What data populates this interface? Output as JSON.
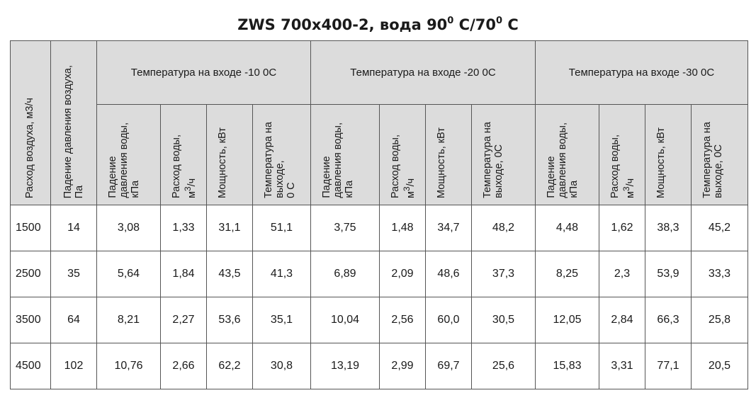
{
  "title": {
    "prefix": "ZWS 700x400-2, вода 90",
    "sup1": "0",
    "middle": " C/70",
    "sup2": "0",
    "suffix": " C"
  },
  "header": {
    "col_air_flow": "Расход воздуха, м3/ч",
    "col_air_pressure": "Падение давления воздуха,\nПа",
    "groups": [
      {
        "label": "Температура на входе -10 0С",
        "cols": [
          {
            "main": "Падение\nдавления воды,\nкПа"
          },
          {
            "main": "Расход воды,\nм",
            "sup": "3",
            "tail": "/ч"
          },
          {
            "main": "Мощность, кВт"
          },
          {
            "main": "Температура на\nвыходе,\n0 С"
          }
        ]
      },
      {
        "label": "Температура на входе -20 0С",
        "cols": [
          {
            "main": "Падение\nдавления воды,\nкПа"
          },
          {
            "main": "Расход воды,\nм",
            "sup": "3",
            "tail": "/ч"
          },
          {
            "main": "Мощность, кВт"
          },
          {
            "main": "Температура на\nвыходе, 0С"
          }
        ]
      },
      {
        "label": "Температура на входе -30 0С",
        "cols": [
          {
            "main": "Падение\nдавления воды,\nкПа"
          },
          {
            "main": "Расход воды,\nм",
            "sup": "3",
            "tail": "/ч"
          },
          {
            "main": "Мощность, кВт"
          },
          {
            "main": "Температура на\nвыходе, 0С"
          }
        ]
      }
    ]
  },
  "rows": [
    [
      "1500",
      "14",
      "3,08",
      "1,33",
      "31,1",
      "51,1",
      "3,75",
      "1,48",
      "34,7",
      "48,2",
      "4,48",
      "1,62",
      "38,3",
      "45,2"
    ],
    [
      "2500",
      "35",
      "5,64",
      "1,84",
      "43,5",
      "41,3",
      "6,89",
      "2,09",
      "48,6",
      "37,3",
      "8,25",
      "2,3",
      "53,9",
      "33,3"
    ],
    [
      "3500",
      "64",
      "8,21",
      "2,27",
      "53,6",
      "35,1",
      "10,04",
      "2,56",
      "60,0",
      "30,5",
      "12,05",
      "2,84",
      "66,3",
      "25,8"
    ],
    [
      "4500",
      "102",
      "10,76",
      "2,66",
      "62,2",
      "30,8",
      "13,19",
      "2,99",
      "69,7",
      "25,6",
      "15,83",
      "3,31",
      "77,1",
      "20,5"
    ]
  ],
  "colors": {
    "header_bg": "#dcdcdc",
    "border": "#555555"
  }
}
